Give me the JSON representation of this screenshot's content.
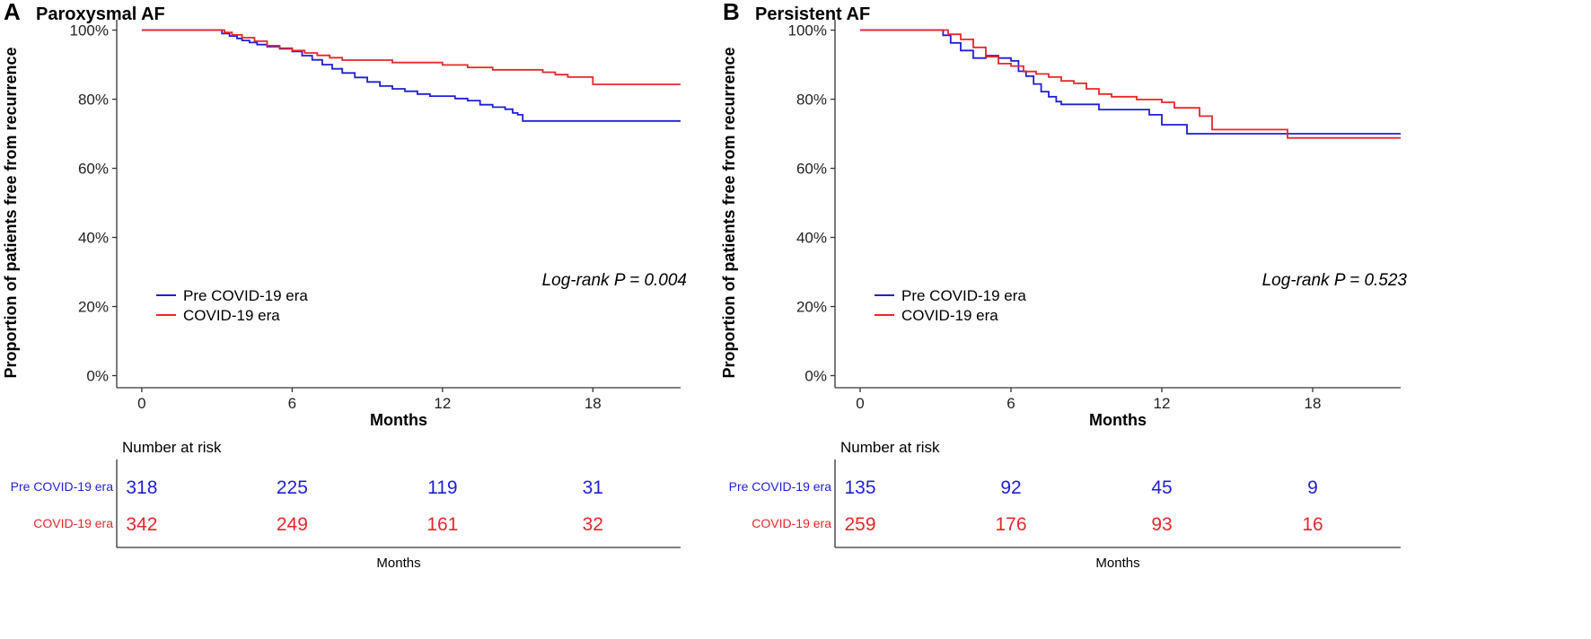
{
  "colors": {
    "pre": "#1f1fd6",
    "covid": "#e8262a",
    "axis": "#333333",
    "text": "#000000"
  },
  "legend_labels": [
    "Pre COVID-19 era",
    "COVID-19 era"
  ],
  "chart_data": [
    {
      "type": "line",
      "panel_letter": "A",
      "title": "Paroxysmal AF",
      "xlabel": "Months",
      "ylabel": "Proportion of patients free from recurrence",
      "xlim": [
        -1,
        21.5
      ],
      "ylim": [
        -3.5,
        103
      ],
      "xticks": [
        0,
        6,
        12,
        18
      ],
      "yticks": [
        0,
        20,
        40,
        60,
        80,
        100
      ],
      "ytick_labels": [
        "0%",
        "20%",
        "40%",
        "60%",
        "80%",
        "100%"
      ],
      "legend_position": "bottom-left",
      "annotation": "Log-rank P = 0.004",
      "series": [
        {
          "name": "Pre COVID-19 era",
          "color": "#1f1fd6",
          "x": [
            0,
            3.0,
            3.2,
            3.5,
            3.8,
            4.0,
            4.3,
            4.6,
            5.0,
            5.5,
            6.0,
            6.4,
            6.8,
            7.2,
            7.6,
            8.0,
            8.5,
            9.0,
            9.5,
            10.0,
            10.5,
            11.0,
            11.5,
            12.0,
            12.5,
            13.0,
            13.5,
            14.0,
            14.5,
            14.8,
            15.0,
            15.2,
            21.5
          ],
          "y": [
            100,
            100,
            99.0,
            98.3,
            97.6,
            97.0,
            96.4,
            95.8,
            95.2,
            94.6,
            93.8,
            92.6,
            91.4,
            90.0,
            88.8,
            87.6,
            86.3,
            85.0,
            83.8,
            83.0,
            82.3,
            81.5,
            80.9,
            80.9,
            80.2,
            79.6,
            78.4,
            77.7,
            77.1,
            76.0,
            75.5,
            73.7,
            73.7
          ]
        },
        {
          "name": "COVID-19 era",
          "color": "#e8262a",
          "x": [
            0,
            3.0,
            3.3,
            3.6,
            4.0,
            4.5,
            5.0,
            5.5,
            6.0,
            6.5,
            7.0,
            7.5,
            8.0,
            9.0,
            10.0,
            11.0,
            12.0,
            12.5,
            13.0,
            14.0,
            15.0,
            16.0,
            16.5,
            17.0,
            17.5,
            18.0,
            21.5
          ],
          "y": [
            100,
            100,
            99.3,
            98.6,
            97.8,
            96.8,
            95.5,
            94.8,
            94.1,
            93.4,
            92.7,
            92.0,
            91.3,
            91.3,
            90.6,
            90.6,
            89.9,
            89.9,
            89.2,
            88.5,
            88.5,
            87.8,
            87.1,
            86.4,
            86.4,
            84.3,
            84.3
          ]
        }
      ],
      "risk_table": {
        "title": "Number at risk",
        "xlabel": "Months",
        "times": [
          0,
          6,
          12,
          18
        ],
        "rows": [
          {
            "name": "Pre COVID-19 era",
            "values": [
              318,
              225,
              119,
              31
            ]
          },
          {
            "name": "COVID-19 era",
            "values": [
              342,
              249,
              161,
              32
            ]
          }
        ]
      }
    },
    {
      "type": "line",
      "panel_letter": "B",
      "title": "Persistent AF",
      "xlabel": "Months",
      "ylabel": "Proportion of patients free from recurrence",
      "xlim": [
        -1,
        21.5
      ],
      "ylim": [
        -3.5,
        103
      ],
      "xticks": [
        0,
        6,
        12,
        18
      ],
      "yticks": [
        0,
        20,
        40,
        60,
        80,
        100
      ],
      "ytick_labels": [
        "0%",
        "20%",
        "40%",
        "60%",
        "80%",
        "100%"
      ],
      "legend_position": "bottom-left",
      "annotation": "Log-rank P = 0.523",
      "series": [
        {
          "name": "Pre COVID-19 era",
          "color": "#1f1fd6",
          "x": [
            0,
            3.0,
            3.3,
            3.6,
            4.0,
            4.5,
            5.0,
            5.5,
            6.0,
            6.3,
            6.6,
            6.9,
            7.2,
            7.5,
            7.8,
            8.0,
            8.5,
            9.5,
            10.5,
            11.5,
            12.0,
            12.5,
            13.0,
            16.0,
            21.5
          ],
          "y": [
            100,
            100,
            98.5,
            96.3,
            94.1,
            91.9,
            92.6,
            91.9,
            91.1,
            88.1,
            86.7,
            84.4,
            82.2,
            80.7,
            79.3,
            78.5,
            78.5,
            77.0,
            77.0,
            75.5,
            72.6,
            72.6,
            70.0,
            70.0,
            70.0
          ]
        },
        {
          "name": "COVID-19 era",
          "color": "#e8262a",
          "x": [
            0,
            3.0,
            3.5,
            4.0,
            4.5,
            5.0,
            5.5,
            6.0,
            6.5,
            7.0,
            7.5,
            8.0,
            8.5,
            9.0,
            9.5,
            10.0,
            11.0,
            12.0,
            12.5,
            13.0,
            13.5,
            14.0,
            15.0,
            16.0,
            17.0,
            21.5
          ],
          "y": [
            100,
            100,
            98.8,
            97.3,
            95.0,
            92.3,
            90.3,
            89.6,
            88.0,
            87.3,
            86.4,
            85.3,
            84.6,
            83.0,
            81.5,
            80.7,
            79.9,
            79.1,
            77.5,
            77.5,
            75.1,
            71.2,
            71.2,
            71.2,
            68.8,
            68.8
          ]
        }
      ],
      "risk_table": {
        "title": "Number at risk",
        "xlabel": "Months",
        "times": [
          0,
          6,
          12,
          18
        ],
        "rows": [
          {
            "name": "Pre COVID-19 era",
            "values": [
              135,
              92,
              45,
              9
            ]
          },
          {
            "name": "COVID-19 era",
            "values": [
              259,
              176,
              93,
              16
            ]
          }
        ]
      }
    }
  ]
}
